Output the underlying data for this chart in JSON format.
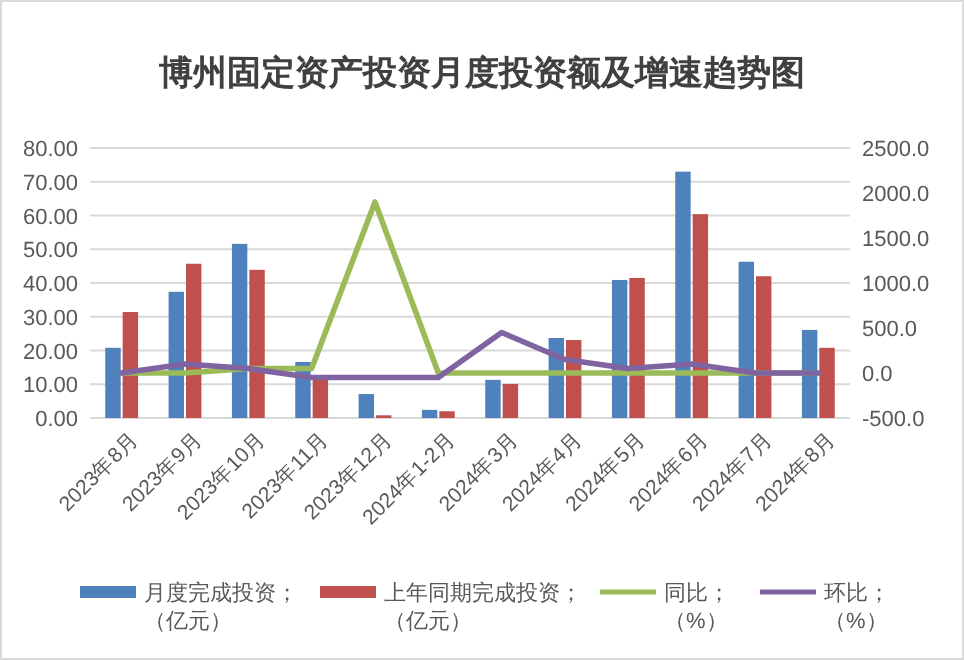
{
  "chart_data": {
    "type": "bar",
    "title": "博州固定资产投资月度投资额及增速趋势图",
    "categories": [
      "2023年8月",
      "2023年9月",
      "2023年10月",
      "2023年11月",
      "2023年12月",
      "2024年1-2月",
      "2024年3月",
      "2024年4月",
      "2024年5月",
      "2024年6月",
      "2024年7月",
      "2024年8月"
    ],
    "series": [
      {
        "name": "月度完成投资；（亿元）",
        "color": "#4f81bd",
        "values": [
          20.8,
          37.4,
          51.6,
          16.6,
          7.1,
          2.4,
          11.3,
          23.7,
          40.9,
          73.0,
          46.3,
          26.1
        ]
      },
      {
        "name": "上年同期完成投资；（亿元）",
        "color": "#c0504d",
        "values": [
          31.4,
          45.7,
          43.9,
          12.3,
          0.8,
          2.0,
          10.1,
          23.1,
          41.5,
          60.4,
          42.0,
          20.8
        ]
      },
      {
        "name": "同比；（%）",
        "type": "line",
        "axis": "y2",
        "color": "#9bbb59",
        "values": [
          0,
          0,
          50,
          50,
          1900,
          0,
          0,
          0,
          0,
          0,
          0,
          0
        ]
      },
      {
        "name": "环比；（%）",
        "type": "line",
        "axis": "y2",
        "color": "#8064a2",
        "values": [
          0,
          100,
          50,
          -50,
          -50,
          -50,
          450,
          150,
          50,
          100,
          0,
          0
        ]
      }
    ],
    "ylim": [
      0,
      80
    ],
    "yticks": [
      {
        "value": 0,
        "label": "0.00"
      },
      {
        "value": 10,
        "label": "10.00"
      },
      {
        "value": 20,
        "label": "20.00"
      },
      {
        "value": 30,
        "label": "30.00"
      },
      {
        "value": 40,
        "label": "40.00"
      },
      {
        "value": 50,
        "label": "50.00"
      },
      {
        "value": 60,
        "label": "60.00"
      },
      {
        "value": 70,
        "label": "70.00"
      },
      {
        "value": 80,
        "label": "80.00"
      }
    ],
    "y2lim": [
      -500,
      2500
    ],
    "y2ticks": [
      {
        "value": -500,
        "label": "-500.0"
      },
      {
        "value": 0,
        "label": "0.0"
      },
      {
        "value": 500,
        "label": "500.0"
      },
      {
        "value": 1000,
        "label": "1000.0"
      },
      {
        "value": 1500,
        "label": "1500.0"
      },
      {
        "value": 2000,
        "label": "2000.0"
      },
      {
        "value": 2500,
        "label": "2500.0"
      }
    ],
    "grid": "y",
    "legend": "bottom"
  }
}
